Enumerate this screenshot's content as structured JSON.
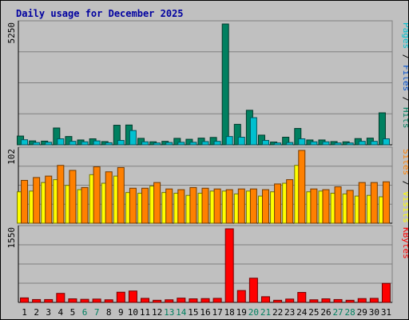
{
  "chart_data": {
    "type": "bar",
    "title": "Daily usage for December 2025",
    "categories": [
      "1",
      "2",
      "3",
      "4",
      "5",
      "6",
      "7",
      "8",
      "9",
      "10",
      "11",
      "12",
      "13",
      "14",
      "15",
      "16",
      "17",
      "18",
      "19",
      "20",
      "21",
      "22",
      "23",
      "24",
      "25",
      "26",
      "27",
      "28",
      "29",
      "30",
      "31"
    ],
    "weekend_days": [
      "6",
      "7",
      "13",
      "14",
      "20",
      "21",
      "27",
      "28"
    ],
    "panels": [
      {
        "name": "hits-files-pages",
        "ymax_label": "5250",
        "ylim": [
          0,
          5250
        ],
        "grid": true,
        "legend": [
          {
            "label": "Pages",
            "color": "#00c0d0"
          },
          {
            "label": "Files",
            "color": "#0050d0"
          },
          {
            "label": "Hits",
            "color": "#008060"
          }
        ],
        "series": [
          {
            "name": "Hits",
            "color": "#008060",
            "values": [
              380,
              170,
              160,
              730,
              360,
              210,
              260,
              140,
              850,
              860,
              280,
              130,
              150,
              280,
              240,
              290,
              320,
              5250,
              890,
              1500,
              420,
              120,
              330,
              710,
              210,
              210,
              140,
              130,
              270,
              290,
              1390
            ]
          },
          {
            "name": "Pages",
            "color": "#00c0d0",
            "values": [
              220,
              100,
              110,
              260,
              150,
              130,
              170,
              90,
              190,
              620,
              130,
              80,
              100,
              110,
              110,
              140,
              150,
              360,
              330,
              1180,
              190,
              80,
              100,
              260,
              130,
              130,
              80,
              80,
              150,
              150,
              260
            ]
          }
        ]
      },
      {
        "name": "visits-sites",
        "ymax_label": "102",
        "ylim": [
          0,
          102
        ],
        "grid": true,
        "legend": [
          {
            "label": "Sites",
            "color": "#ff8000"
          },
          {
            "label": "Visits",
            "color": "#ffff00"
          }
        ],
        "series": [
          {
            "name": "Visits",
            "color": "#ffff00",
            "values": [
              44,
              45,
              57,
              61,
              53,
              47,
              68,
              56,
              66,
              43,
              42,
              52,
              43,
              42,
              39,
              42,
              45,
              45,
              41,
              45,
              38,
              44,
              56,
              81,
              44,
              45,
              42,
              41,
              38,
              39,
              37
            ]
          },
          {
            "name": "Sites",
            "color": "#ff8000",
            "values": [
              60,
              64,
              66,
              81,
              74,
              50,
              79,
              72,
              78,
              49,
              49,
              57,
              48,
              47,
              50,
              49,
              48,
              47,
              48,
              48,
              47,
              55,
              61,
              102,
              48,
              47,
              51,
              46,
              57,
              57,
              58
            ]
          }
        ]
      },
      {
        "name": "kbytes",
        "ymax_label": "1550",
        "ylim": [
          0,
          1550
        ],
        "grid": true,
        "legend": [
          {
            "label": "KBytes",
            "color": "#ff0000"
          }
        ],
        "series": [
          {
            "name": "KBytes",
            "color": "#ff0000",
            "values": [
              95,
              60,
              60,
              190,
              75,
              65,
              70,
              55,
              215,
              240,
              85,
              45,
              55,
              90,
              75,
              80,
              85,
              1550,
              250,
              510,
              120,
              45,
              70,
              210,
              55,
              75,
              60,
              45,
              80,
              85,
              400
            ]
          }
        ]
      }
    ]
  }
}
